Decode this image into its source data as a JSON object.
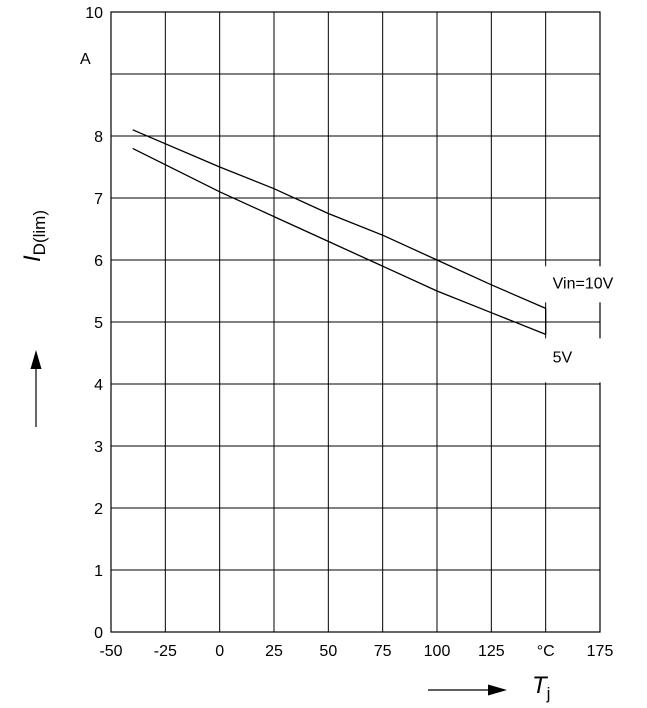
{
  "chart_data": {
    "type": "line",
    "x_label": "T",
    "x_label_sub": "j",
    "y_label": "I",
    "y_label_sub": "D(lim)",
    "x_unit": "°C",
    "y_unit": "A",
    "xlim": [
      -50,
      175
    ],
    "ylim": [
      0,
      10
    ],
    "x_ticks": [
      "-50",
      "-25",
      "0",
      "25",
      "50",
      "75",
      "100",
      "125",
      "°C",
      "175"
    ],
    "y_ticks": [
      "0",
      "1",
      "2",
      "3",
      "4",
      "5",
      "6",
      "7",
      "8",
      "",
      "10"
    ],
    "grid": true,
    "series": [
      {
        "name": "Vin=10V",
        "x": [
          -40,
          0,
          25,
          50,
          75,
          100,
          125,
          150
        ],
        "y": [
          8.1,
          7.5,
          7.15,
          6.75,
          6.4,
          6.0,
          5.6,
          5.22
        ]
      },
      {
        "name": "5V",
        "x": [
          -40,
          0,
          25,
          50,
          75,
          100,
          125,
          150
        ],
        "y": [
          7.8,
          7.1,
          6.7,
          6.3,
          5.9,
          5.5,
          5.15,
          4.8
        ]
      }
    ]
  }
}
